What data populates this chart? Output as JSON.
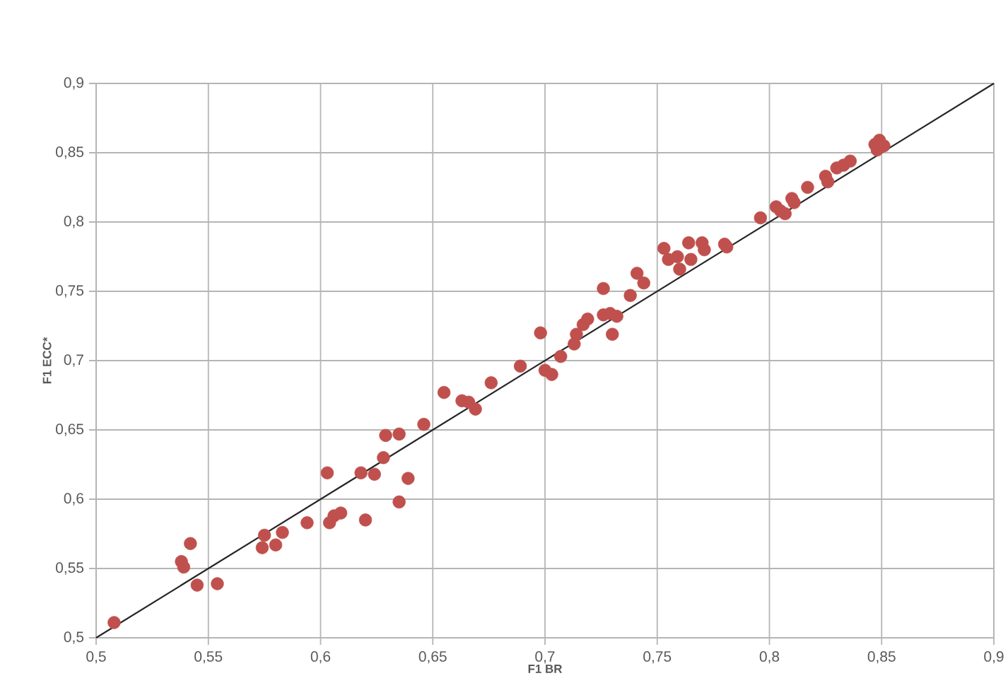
{
  "chart_data": {
    "type": "scatter",
    "xlabel": "F1 BR",
    "ylabel": "F1 ECC*",
    "xlim": [
      0.5,
      0.9
    ],
    "ylim": [
      0.5,
      0.9
    ],
    "xticks": [
      {
        "value": 0.5,
        "label": "0,5"
      },
      {
        "value": 0.55,
        "label": "0,55"
      },
      {
        "value": 0.6,
        "label": "0,6"
      },
      {
        "value": 0.65,
        "label": "0,65"
      },
      {
        "value": 0.7,
        "label": "0,7"
      },
      {
        "value": 0.75,
        "label": "0,75"
      },
      {
        "value": 0.8,
        "label": "0,8"
      },
      {
        "value": 0.85,
        "label": "0,85"
      },
      {
        "value": 0.9,
        "label": "0,9"
      }
    ],
    "yticks": [
      {
        "value": 0.5,
        "label": "0,5"
      },
      {
        "value": 0.55,
        "label": "0,55"
      },
      {
        "value": 0.6,
        "label": "0,6"
      },
      {
        "value": 0.65,
        "label": "0,65"
      },
      {
        "value": 0.7,
        "label": "0,7"
      },
      {
        "value": 0.75,
        "label": "0,75"
      },
      {
        "value": 0.8,
        "label": "0,8"
      },
      {
        "value": 0.85,
        "label": "0,85"
      },
      {
        "value": 0.9,
        "label": "0,9"
      }
    ],
    "grid": true,
    "series": [
      {
        "color": "#c0504d",
        "marker": "circle",
        "x": [
          0.508,
          0.542,
          0.538,
          0.539,
          0.545,
          0.554,
          0.575,
          0.574,
          0.58,
          0.583,
          0.594,
          0.604,
          0.606,
          0.609,
          0.62,
          0.603,
          0.618,
          0.624,
          0.635,
          0.639,
          0.628,
          0.629,
          0.635,
          0.646,
          0.655,
          0.663,
          0.666,
          0.669,
          0.676,
          0.689,
          0.698,
          0.7,
          0.703,
          0.707,
          0.714,
          0.713,
          0.717,
          0.719,
          0.73,
          0.726,
          0.729,
          0.732,
          0.726,
          0.738,
          0.741,
          0.744,
          0.753,
          0.755,
          0.759,
          0.76,
          0.764,
          0.765,
          0.77,
          0.771,
          0.78,
          0.781,
          0.796,
          0.803,
          0.805,
          0.807,
          0.81,
          0.811,
          0.817,
          0.825,
          0.826,
          0.83,
          0.833,
          0.836,
          0.847,
          0.849,
          0.851,
          0.848
        ],
        "values": [
          0.511,
          0.568,
          0.555,
          0.551,
          0.538,
          0.539,
          0.574,
          0.565,
          0.567,
          0.576,
          0.583,
          0.583,
          0.588,
          0.59,
          0.585,
          0.619,
          0.619,
          0.618,
          0.598,
          0.615,
          0.63,
          0.646,
          0.647,
          0.654,
          0.677,
          0.671,
          0.67,
          0.665,
          0.684,
          0.696,
          0.72,
          0.693,
          0.69,
          0.703,
          0.719,
          0.712,
          0.726,
          0.73,
          0.719,
          0.733,
          0.734,
          0.732,
          0.752,
          0.747,
          0.763,
          0.756,
          0.781,
          0.773,
          0.775,
          0.766,
          0.785,
          0.773,
          0.785,
          0.78,
          0.784,
          0.782,
          0.803,
          0.811,
          0.808,
          0.806,
          0.817,
          0.814,
          0.825,
          0.833,
          0.829,
          0.839,
          0.841,
          0.844,
          0.856,
          0.859,
          0.855,
          0.852
        ]
      },
      {
        "type": "line",
        "color": "#262626",
        "x": [
          0.5,
          0.9
        ],
        "values": [
          0.5,
          0.9
        ]
      }
    ]
  }
}
